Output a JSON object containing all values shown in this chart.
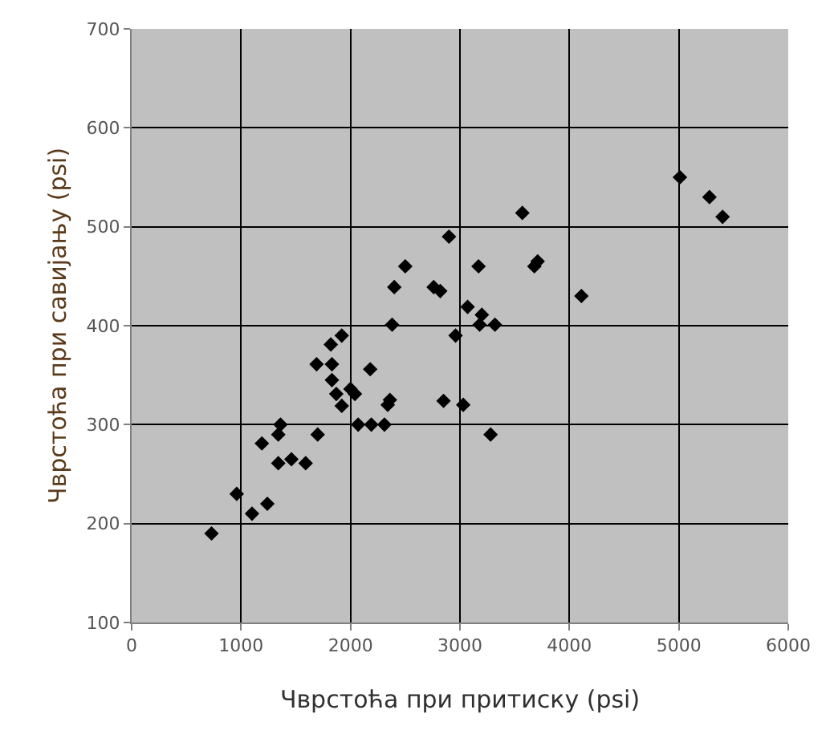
{
  "chart_data": {
    "type": "scatter",
    "xlabel": "Чврстоћа при притиску (psi)",
    "ylabel": "Чврстоћа при савијању (psi)",
    "x": [
      730,
      960,
      1100,
      1240,
      1190,
      1330,
      1340,
      1360,
      1340,
      1460,
      1590,
      1700,
      1690,
      1820,
      1830,
      1830,
      1870,
      1920,
      1920,
      2000,
      2040,
      2070,
      2180,
      2190,
      2310,
      2340,
      2360,
      2380,
      2400,
      2500,
      2760,
      2820,
      2900,
      2850,
      2960,
      3030,
      3070,
      3170,
      3200,
      3180,
      3320,
      3280,
      3570,
      3680,
      3710,
      4110,
      5010,
      5280,
      5400
    ],
    "series": [
      {
        "color": "#000000",
        "values": [
          190,
          230,
          210,
          220,
          281,
          null,
          290,
          300,
          261,
          265,
          261,
          290,
          361,
          381,
          361,
          345,
          331,
          319,
          390,
          336,
          331,
          300,
          356,
          300,
          300,
          320,
          325,
          401,
          439,
          460,
          439,
          435,
          490,
          324,
          390,
          320,
          419,
          460,
          411,
          401,
          401,
          290,
          514,
          460,
          465,
          430,
          550,
          530,
          510
        ]
      }
    ],
    "xlim": [
      0,
      6000
    ],
    "xticks": [
      0,
      1000,
      2000,
      3000,
      4000,
      5000,
      6000
    ],
    "ylim": [
      100,
      700
    ],
    "yticks": [
      100,
      200,
      300,
      400,
      500,
      600,
      700
    ],
    "grid": true,
    "marker": "diamond"
  }
}
